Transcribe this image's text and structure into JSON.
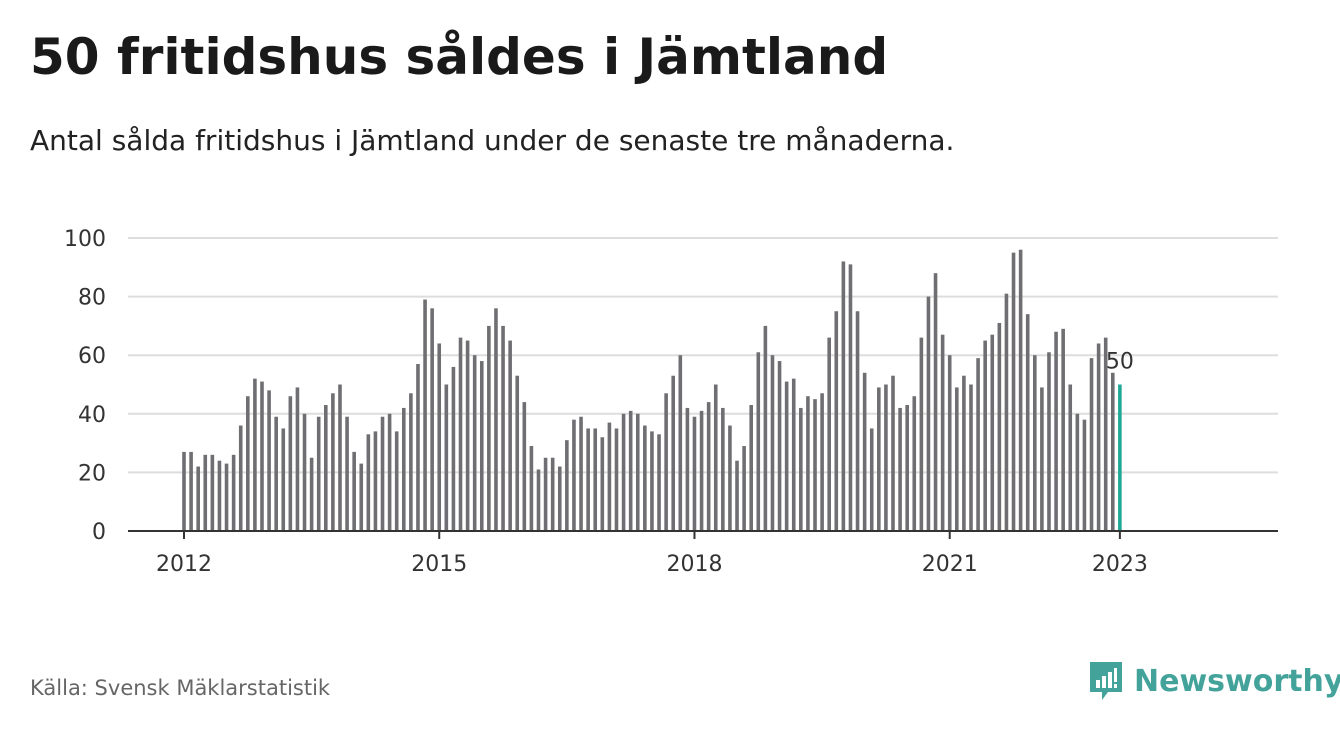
{
  "title": "50 fritidshus såldes i Jämtland",
  "subtitle": "Antal sålda fritidshus i Jämtland under de senaste tre månaderna.",
  "source": "Källa: Svensk Mäklarstatistik",
  "brand": {
    "name": "Newsworthy",
    "icon": "newsworthy-logo-icon",
    "color": "#43a39b"
  },
  "colors": {
    "bar": "#6f6f73",
    "highlight": "#1fa896",
    "grid": "#dddddd",
    "axis": "#333333"
  },
  "chart_data": {
    "type": "bar",
    "title": "50 fritidshus såldes i Jämtland",
    "subtitle": "Antal sålda fritidshus i Jämtland under de senaste tre månaderna.",
    "x_start": "2012-01",
    "frequency": "monthly",
    "values": [
      27,
      27,
      22,
      26,
      26,
      24,
      23,
      26,
      36,
      46,
      52,
      51,
      48,
      39,
      35,
      46,
      49,
      40,
      25,
      39,
      43,
      47,
      50,
      39,
      27,
      23,
      33,
      34,
      39,
      40,
      34,
      42,
      47,
      57,
      79,
      76,
      64,
      50,
      56,
      66,
      65,
      60,
      58,
      70,
      76,
      70,
      65,
      53,
      44,
      29,
      21,
      25,
      25,
      22,
      31,
      38,
      39,
      35,
      35,
      32,
      37,
      35,
      40,
      41,
      40,
      36,
      34,
      33,
      47,
      53,
      60,
      42,
      39,
      41,
      44,
      50,
      42,
      36,
      24,
      29,
      43,
      61,
      70,
      60,
      58,
      51,
      52,
      42,
      46,
      45,
      47,
      66,
      75,
      92,
      91,
      75,
      54,
      35,
      49,
      50,
      53,
      42,
      43,
      46,
      66,
      80,
      88,
      67,
      60,
      49,
      53,
      50,
      59,
      65,
      67,
      71,
      81,
      95,
      96,
      74,
      60,
      49,
      61,
      68,
      69,
      50,
      40,
      38,
      59,
      64,
      66,
      54,
      50
    ],
    "ylim": [
      0,
      100
    ],
    "yticks": [
      0,
      20,
      40,
      60,
      80,
      100
    ],
    "xticks": [
      "2012",
      "2015",
      "2018",
      "2021",
      "2023"
    ],
    "highlight_label": "50",
    "grid": true,
    "legend": "none"
  }
}
